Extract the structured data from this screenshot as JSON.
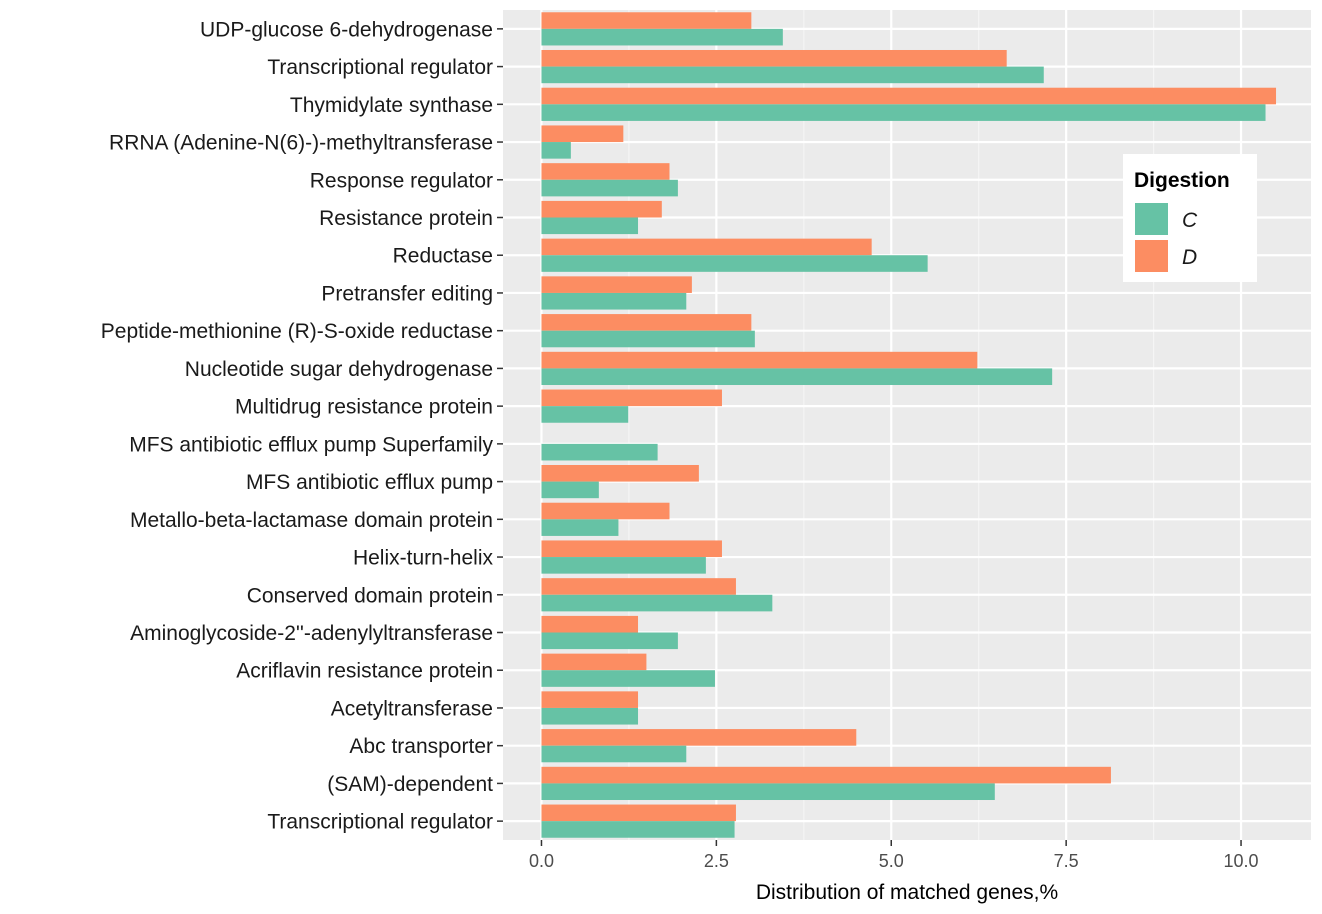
{
  "chart_data": {
    "type": "bar",
    "orientation": "horizontal",
    "categories": [
      "UDP-glucose 6-dehydrogenase",
      "Transcriptional regulator",
      "Thymidylate synthase",
      "RRNA (Adenine-N(6)-)-methyltransferase",
      "Response regulator",
      "Resistance protein",
      "Reductase",
      "Pretransfer editing",
      "Peptide-methionine (R)-S-oxide reductase",
      "Nucleotide sugar dehydrogenase",
      "Multidrug resistance protein",
      "MFS antibiotic efflux pump Superfamily",
      "MFS antibiotic efflux pump",
      "Metallo-beta-lactamase domain protein",
      "Helix-turn-helix",
      "Conserved domain protein",
      "Aminoglycoside-2''-adenylyltransferase",
      "Acriflavin resistance protein",
      "Acetyltransferase",
      "Abc transporter",
      "(SAM)-dependent",
      "Transcriptional regulator"
    ],
    "series": [
      {
        "name": "C",
        "color": "#66c2a5",
        "values": [
          3.45,
          7.18,
          10.35,
          0.42,
          1.95,
          1.38,
          5.52,
          2.07,
          3.05,
          7.3,
          1.24,
          1.66,
          0.82,
          1.1,
          2.35,
          3.3,
          1.95,
          2.48,
          1.38,
          2.07,
          6.48,
          2.76
        ]
      },
      {
        "name": "D",
        "color": "#fc8d62",
        "values": [
          3.0,
          6.65,
          10.5,
          1.17,
          1.83,
          1.72,
          4.72,
          2.15,
          3.0,
          6.23,
          2.58,
          0.0,
          2.25,
          1.83,
          2.58,
          2.78,
          1.38,
          1.5,
          1.38,
          4.5,
          8.14,
          2.78
        ]
      }
    ],
    "xlabel": "Distribution of matched genes,%",
    "ylabel": "",
    "xlim": [
      -0.55,
      11.0
    ],
    "x_ticks": [
      0.0,
      2.5,
      5.0,
      7.5,
      10.0
    ],
    "x_tick_labels": [
      "0.0",
      "2.5",
      "5.0",
      "7.5",
      "10.0"
    ],
    "grid": true,
    "legend": {
      "title": "Digestion",
      "position": "right-inside",
      "entries": [
        "C",
        "D"
      ]
    }
  }
}
